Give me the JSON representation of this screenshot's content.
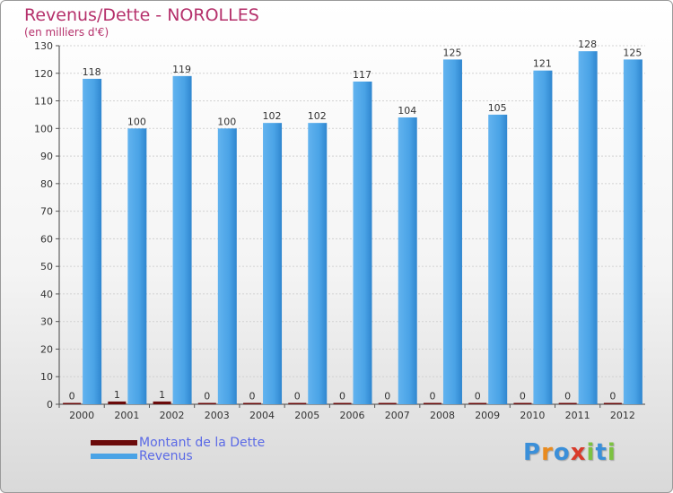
{
  "header": {
    "title": "Revenus/Dette - NOROLLES",
    "subtitle": "(en milliers d'€)"
  },
  "chart_data": {
    "type": "bar",
    "title": "Revenus/Dette - NOROLLES",
    "subtitle": "(en milliers d'€)",
    "categories": [
      "2000",
      "2001",
      "2002",
      "2003",
      "2004",
      "2005",
      "2006",
      "2007",
      "2008",
      "2009",
      "2010",
      "2011",
      "2012"
    ],
    "series": [
      {
        "name": "Montant de la Dette",
        "color": "#6b0a0a",
        "values": [
          0,
          1,
          1,
          0,
          0,
          0,
          0,
          0,
          0,
          0,
          0,
          0,
          0
        ]
      },
      {
        "name": "Revenus",
        "color": "#4aa3e6",
        "values": [
          118,
          100,
          119,
          100,
          102,
          102,
          117,
          104,
          125,
          105,
          121,
          128,
          125
        ]
      }
    ],
    "ylim": [
      0,
      130
    ],
    "yticks": [
      0,
      10,
      20,
      30,
      40,
      50,
      60,
      70,
      80,
      90,
      100,
      110,
      120,
      130
    ],
    "grid": true,
    "legend_position": "bottom-left"
  },
  "legend": {
    "items": [
      {
        "label": "Montant de la Dette",
        "color": "#6b0a0a"
      },
      {
        "label": "Revenus",
        "color": "#4aa3e6"
      }
    ]
  },
  "logo": {
    "letters": [
      "P",
      "r",
      "o",
      "x",
      "i",
      "t",
      "i"
    ],
    "colors": [
      "#3a8fd9",
      "#e98b1f",
      "#3a8fd9",
      "#d93a2a",
      "#7cc241",
      "#3a8fd9",
      "#7cc241"
    ]
  }
}
